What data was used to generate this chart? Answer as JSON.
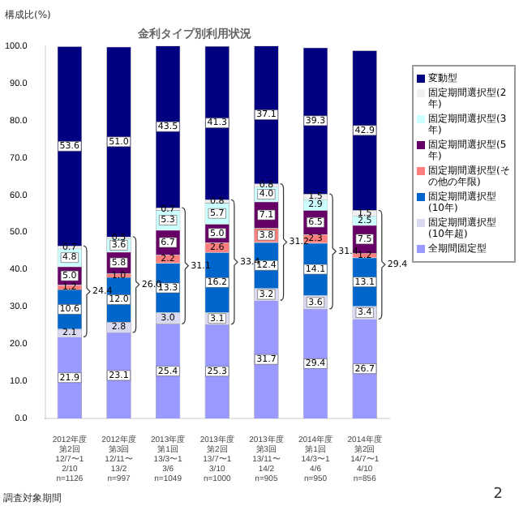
{
  "chart_data": {
    "type": "bar",
    "stacked": true,
    "title": "金利タイプ別利用状況",
    "ylabel": "構成比(%)",
    "categories": [
      "2012年度第2回\n12/7〜12/10\nn=1126",
      "2012年度第3回\n12/11〜13/2\nn=997",
      "2013年度第1回\n13/3〜13/6\nn=1049",
      "2013年度第2回\n13/7〜13/10\nn=1000",
      "2013年度第3回\n13/11〜14/2\nn=905",
      "2014年度第1回\n14/3〜14/6\nn=950",
      "2014年度第2回\n14/7〜14/10\nn=856"
    ],
    "series": [
      {
        "name": "全期間固定型",
        "color": "#9999ff",
        "values": [
          21.9,
          23.1,
          25.4,
          25.3,
          31.7,
          29.4,
          26.7
        ],
        "value_labels": [
          "21.9",
          "23.1",
          "25.4",
          "25.3",
          "31.7",
          "29.4",
          "26.7"
        ]
      },
      {
        "name": "固定期間選択型(10年超)",
        "color": "#d9d9f2",
        "values": [
          2.1,
          2.8,
          3.0,
          3.1,
          3.2,
          3.6,
          3.4
        ],
        "value_labels": [
          "2.1",
          "2.8",
          "3.0",
          "3.1",
          "3.2",
          "3.6",
          "3.4"
        ]
      },
      {
        "name": "固定期間選択型(10年)",
        "color": "#0066cc",
        "values": [
          10.6,
          12.0,
          13.3,
          16.2,
          12.4,
          14.1,
          13.1
        ],
        "value_labels": [
          "10.6",
          "12.0",
          "13.3",
          "16.2",
          "12.4",
          "14.1",
          "13.1"
        ]
      },
      {
        "name": "固定期間選択型(その他の年限)",
        "color": "#ff7f7f",
        "values": [
          1.2,
          1.0,
          2.2,
          2.6,
          3.8,
          2.3,
          1.2
        ],
        "value_labels": [
          "1.2",
          "1.0",
          "2.2",
          "2.6",
          "3.8",
          "2.3",
          "1.2"
        ]
      },
      {
        "name": "固定期間選択型(5年)",
        "color": "#660066",
        "values": [
          5.0,
          5.8,
          6.7,
          5.0,
          7.1,
          6.5,
          7.5
        ],
        "value_labels": [
          "5.0",
          "5.8",
          "6.7",
          "5.0",
          "7.1",
          "6.5",
          "7.5"
        ]
      },
      {
        "name": "固定期間選択型(3年)",
        "color": "#ccffff",
        "values": [
          4.8,
          3.6,
          5.3,
          5.7,
          4.0,
          2.9,
          2.5
        ],
        "value_labels": [
          "4.8",
          "3.6",
          "5.3",
          "5.7",
          "4.0",
          "2.9",
          "2.5"
        ]
      },
      {
        "name": "固定期間選択型(2年)",
        "color": "#f0f0f0",
        "values": [
          0.7,
          0.5,
          0.7,
          0.8,
          0.8,
          1.5,
          1.5
        ],
        "value_labels": [
          "0.7",
          "0.5",
          "0.7",
          "0.8",
          "0.8",
          "1.5",
          "1.5"
        ]
      },
      {
        "name": "変動型",
        "color": "#000080",
        "values": [
          53.6,
          51.0,
          43.5,
          41.3,
          37.1,
          39.3,
          42.9
        ],
        "value_labels": [
          "53.6",
          "51.0",
          "43.5",
          "41.3",
          "37.1",
          "39.3",
          "42.9"
        ]
      }
    ],
    "ylim": [
      0,
      100
    ],
    "yticks": [
      {
        "value": 0,
        "label": "0.0"
      },
      {
        "value": 10,
        "label": "10.0"
      },
      {
        "value": 20,
        "label": "20.0"
      },
      {
        "value": 30,
        "label": "30.0"
      },
      {
        "value": 40,
        "label": "40.0"
      },
      {
        "value": 50,
        "label": "50.0"
      },
      {
        "value": 60,
        "label": "60.0"
      },
      {
        "value": 70,
        "label": "70.0"
      },
      {
        "value": 80,
        "label": "80.0"
      },
      {
        "value": 90,
        "label": "90.0"
      },
      {
        "value": 100,
        "label": "100.0"
      }
    ],
    "legend": "right",
    "grid": false,
    "annotations": [
      "24.4",
      "26.0",
      "31.1",
      "33.4",
      "31.2",
      "31.4",
      "29.4",
      "調査対象期間",
      "2"
    ]
  }
}
